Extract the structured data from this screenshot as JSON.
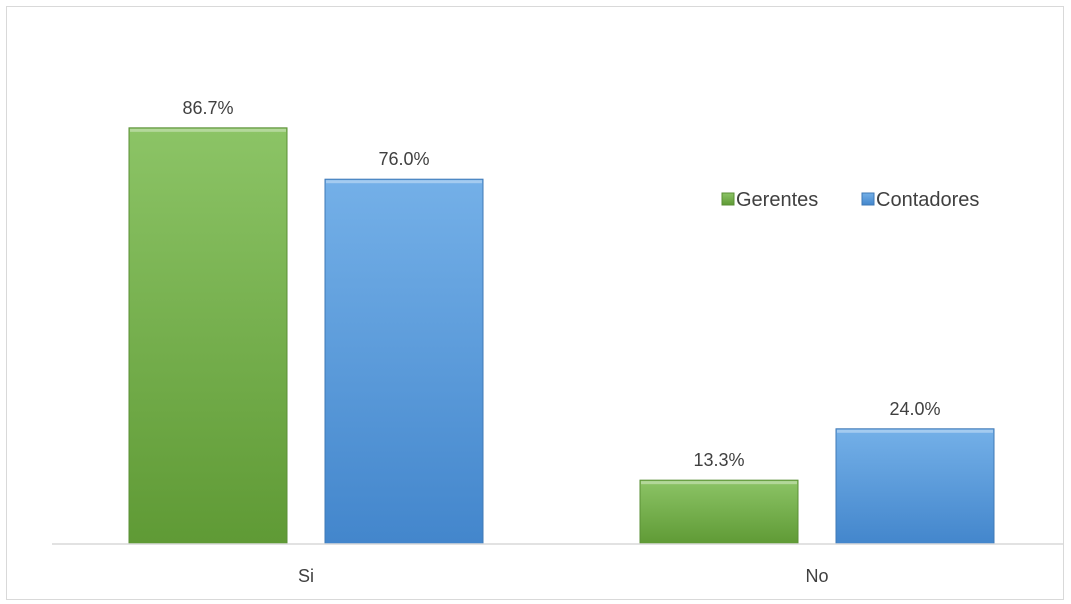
{
  "chart_data": {
    "type": "bar",
    "categories": [
      "Si",
      "No"
    ],
    "series": [
      {
        "name": "Gerentes",
        "values": [
          86.7,
          13.3
        ],
        "labels": [
          "86.7%",
          "13.3%"
        ],
        "color": "#70ad47"
      },
      {
        "name": "Contadores",
        "values": [
          76.0,
          24.0
        ],
        "labels": [
          "76.0%",
          "24.0%"
        ],
        "color": "#5b9bd5"
      }
    ],
    "title": "",
    "xlabel": "",
    "ylabel": "",
    "ylim": [
      0,
      100
    ],
    "grid": false,
    "legend": "top-right",
    "value_suffix": "%"
  }
}
